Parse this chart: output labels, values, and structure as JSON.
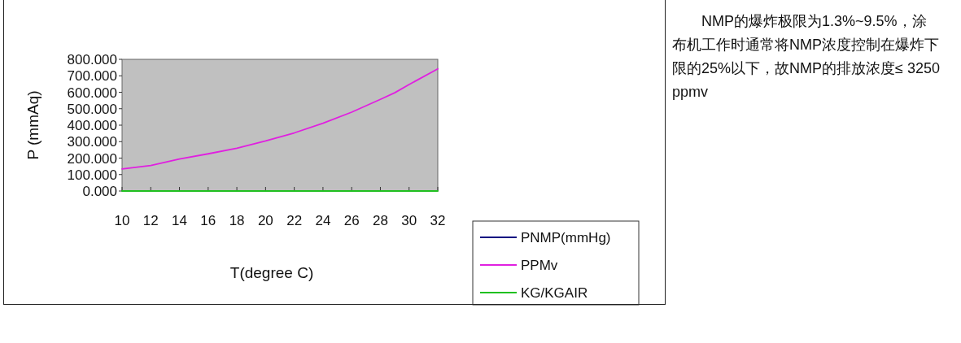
{
  "chart_data": {
    "type": "line",
    "xlabel": "T(degree C)",
    "ylabel": "P (mmAq)",
    "x": [
      10,
      12,
      14,
      16,
      18,
      20,
      22,
      24,
      26,
      28,
      29,
      30,
      32
    ],
    "xlim": [
      10,
      32
    ],
    "xticks": [
      10,
      12,
      14,
      16,
      18,
      20,
      22,
      24,
      26,
      28,
      30,
      32
    ],
    "ylim": [
      0,
      800
    ],
    "yticks": [
      {
        "value": 0,
        "label": "0.000"
      },
      {
        "value": 100,
        "label": "100.000"
      },
      {
        "value": 200,
        "label": "200.000"
      },
      {
        "value": 300,
        "label": "300.000"
      },
      {
        "value": 400,
        "label": "400.000"
      },
      {
        "value": 500,
        "label": "500.000"
      },
      {
        "value": 600,
        "label": "600.000"
      },
      {
        "value": 700,
        "label": "700.000"
      },
      {
        "value": 800,
        "label": "800.000"
      }
    ],
    "series": [
      {
        "name": "PNMP(mmHg)",
        "color": "#000080",
        "values": [
          null,
          null,
          null,
          null,
          null,
          null,
          null,
          null,
          null,
          null,
          null,
          null,
          null
        ]
      },
      {
        "name": "PPMv",
        "color": "#e020e0",
        "values": [
          134,
          155,
          194,
          226,
          260,
          304,
          353,
          412,
          479,
          557,
          597,
          647,
          742
        ]
      },
      {
        "name": "KG/KGAIR",
        "color": "#20c020",
        "values": [
          0,
          0,
          0,
          0,
          0,
          0,
          0,
          0,
          0,
          0,
          0,
          0,
          0
        ]
      }
    ],
    "legend": "bottom right",
    "grid": false,
    "marker": "none",
    "line_style": "solid",
    "annotations": [
      "NMP的爆炸极限为1.3%~9.5%，涂布机工作时通常将NMP浓度控制在爆炸下限的25%以下，故NMP的排放浓度≤ 3250ppmv"
    ]
  }
}
